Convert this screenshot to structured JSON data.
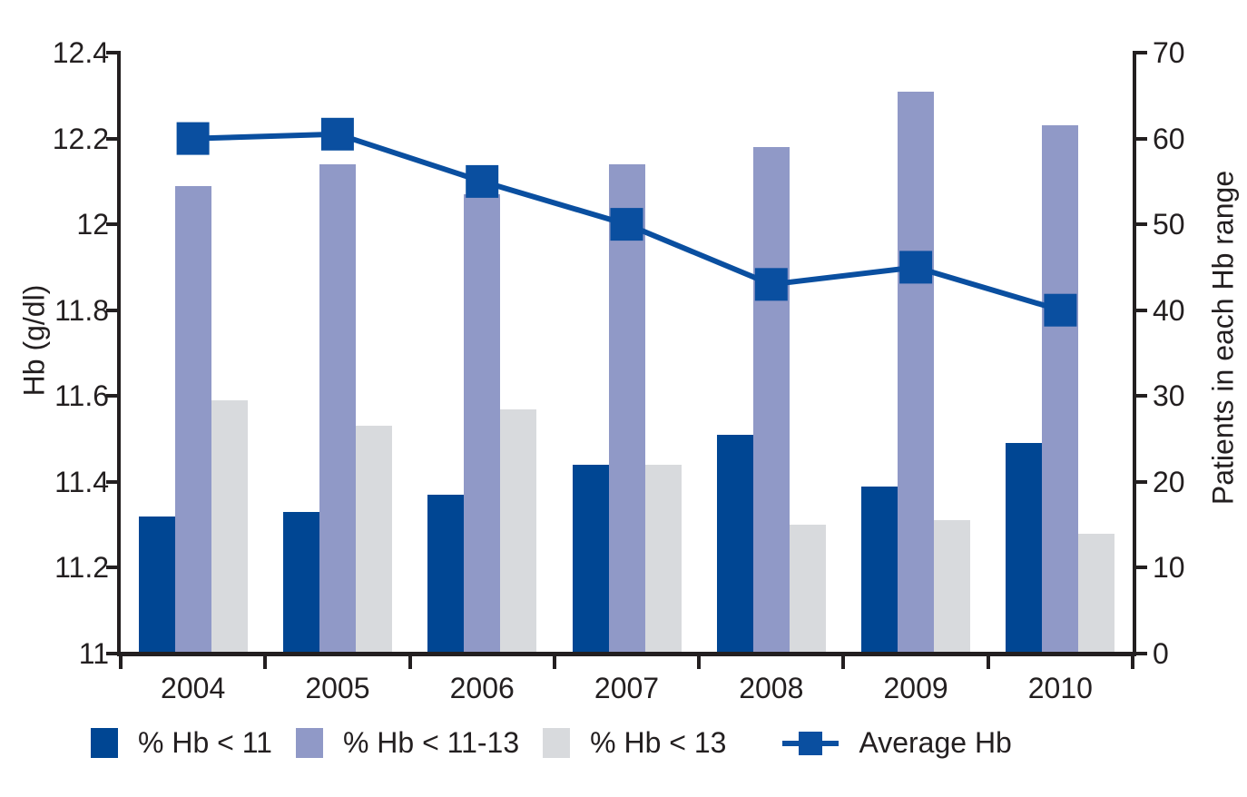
{
  "axes": {
    "left": {
      "title": "Hb (g/dl)",
      "tick_labels": [
        "12.4",
        "12.2",
        "12",
        "11.8",
        "11.6",
        "11.4",
        "11.2",
        "11"
      ],
      "tick_values": [
        12.4,
        12.2,
        12,
        11.8,
        11.6,
        11.4,
        11.2,
        11
      ],
      "range": [
        11,
        12.4
      ]
    },
    "right": {
      "title": "Patients in each Hb range",
      "tick_labels": [
        "70",
        "60",
        "50",
        "40",
        "30",
        "20",
        "10",
        "0"
      ],
      "tick_values": [
        70,
        60,
        50,
        40,
        30,
        20,
        10,
        0
      ],
      "range": [
        0,
        70
      ]
    },
    "x": {
      "tick_labels": [
        "2004",
        "2005",
        "2006",
        "2007",
        "2008",
        "2009",
        "2010"
      ]
    }
  },
  "colors": {
    "bar_dark_blue": "#004693",
    "bar_purple": "#9099c7",
    "bar_gray": "#d8dadd",
    "line_blue": "#0a4fa0",
    "axis": "#231f20",
    "text": "#231f20",
    "background": "#ffffff"
  },
  "chart_data": {
    "type": "bar+line",
    "categories": [
      "2004",
      "2005",
      "2006",
      "2007",
      "2008",
      "2009",
      "2010"
    ],
    "series": [
      {
        "name": "% Hb < 11",
        "type": "bar",
        "axis": "right",
        "color": "#004693",
        "values": [
          16,
          16.5,
          18.5,
          22,
          25.5,
          19.5,
          24.5
        ]
      },
      {
        "name": "% Hb < 11-13",
        "type": "bar",
        "axis": "right",
        "color": "#9099c7",
        "values": [
          54.5,
          57,
          53.5,
          57,
          59,
          65.5,
          61.5
        ]
      },
      {
        "name": "% Hb < 13",
        "type": "bar",
        "axis": "right",
        "color": "#d8dadd",
        "values": [
          29.5,
          26.5,
          28.5,
          22,
          15,
          15.5,
          14
        ]
      },
      {
        "name": "Average Hb",
        "type": "line",
        "axis": "left",
        "color": "#0a4fa0",
        "values": [
          12.2,
          12.21,
          12.1,
          12.0,
          11.86,
          11.9,
          11.8
        ]
      }
    ],
    "title": "",
    "xlabel": "",
    "left_ylabel": "Hb (g/dl)",
    "right_ylabel": "Patients in each Hb range",
    "left_ylim": [
      11,
      12.4
    ],
    "right_ylim": [
      0,
      70
    ],
    "grid": false,
    "legend_position": "bottom"
  }
}
